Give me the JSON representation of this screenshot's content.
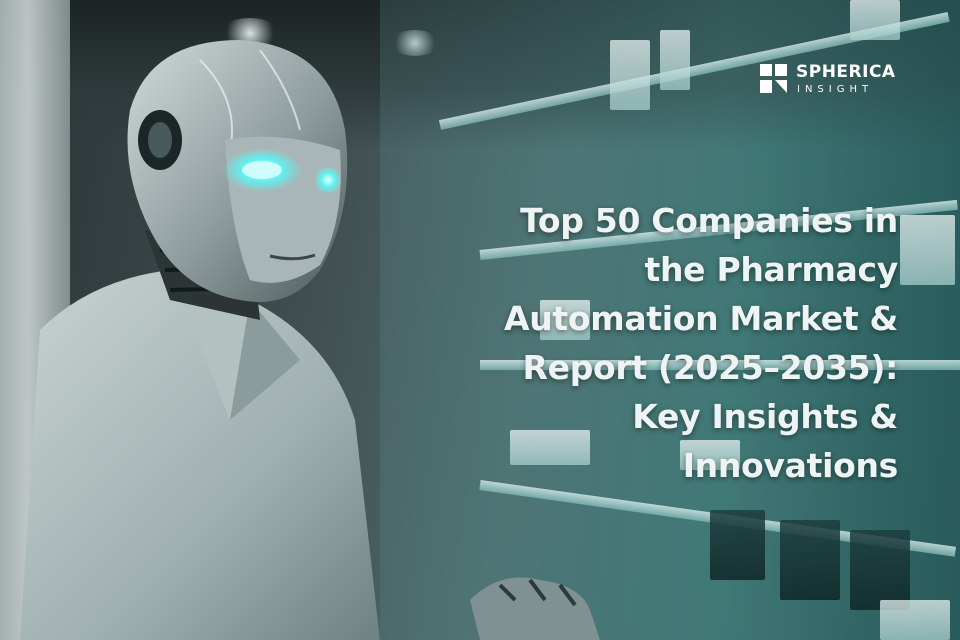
{
  "brand": {
    "name": "SPHERICA",
    "subtitle": "INSIGHT",
    "icon": "spherica-logo-mark"
  },
  "headline": {
    "lines": [
      "Top 50 Companies in",
      "the Pharmacy",
      "Automation Market &",
      "Report (2025–2035):",
      "Key Insights &",
      "Innovations"
    ]
  },
  "colors": {
    "headline_text": "#eef3f4",
    "logo_text": "#ffffff",
    "scene_teal": "#3a6e6c",
    "robot_eye_glow": "#5ff2f0"
  }
}
